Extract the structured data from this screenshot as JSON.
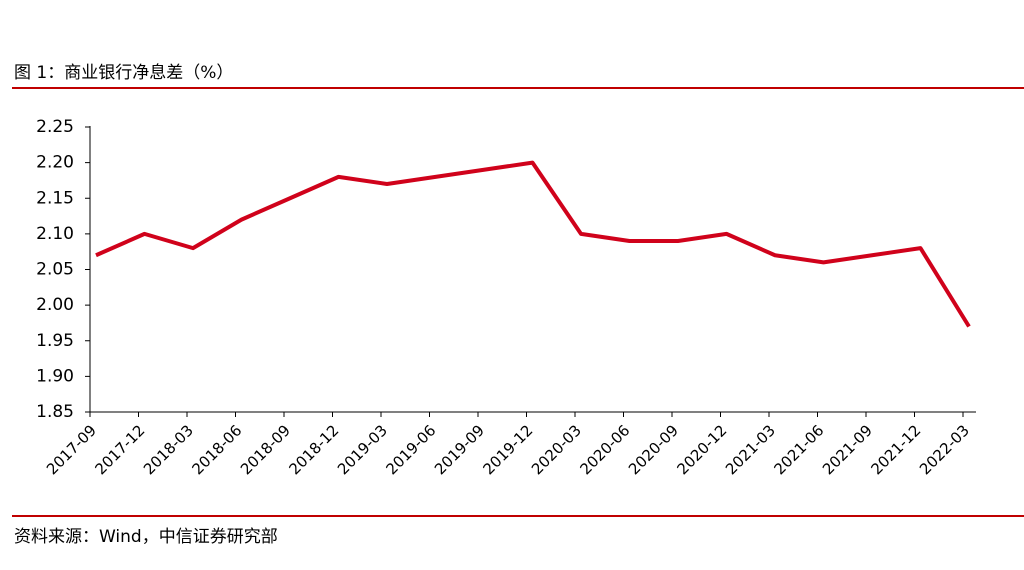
{
  "chart_data": {
    "type": "line",
    "title": "图 1：商业银行净息差（%）",
    "source": "资料来源：Wind，中信证券研究部",
    "categories": [
      "2017-09",
      "2017-12",
      "2018-03",
      "2018-06",
      "2018-09",
      "2018-12",
      "2019-03",
      "2019-06",
      "2019-09",
      "2019-12",
      "2020-03",
      "2020-06",
      "2020-09",
      "2020-12",
      "2021-03",
      "2021-06",
      "2021-09",
      "2021-12",
      "2022-03"
    ],
    "values": [
      2.07,
      2.1,
      2.08,
      2.12,
      2.15,
      2.18,
      2.17,
      2.18,
      2.19,
      2.2,
      2.1,
      2.09,
      2.09,
      2.1,
      2.07,
      2.06,
      2.07,
      2.08,
      1.97
    ],
    "color": "#d0021b",
    "ylim": [
      1.85,
      2.25
    ],
    "yticks": [
      1.85,
      {
        "value": 1.9,
        "label": "1.90"
      },
      1.95,
      {
        "value": 2.0,
        "label": "2.00"
      },
      2.05,
      {
        "value": 2.1,
        "label": "2.10"
      },
      2.15,
      {
        "value": 2.2,
        "label": "2.20"
      },
      2.25
    ],
    "grid": false
  }
}
